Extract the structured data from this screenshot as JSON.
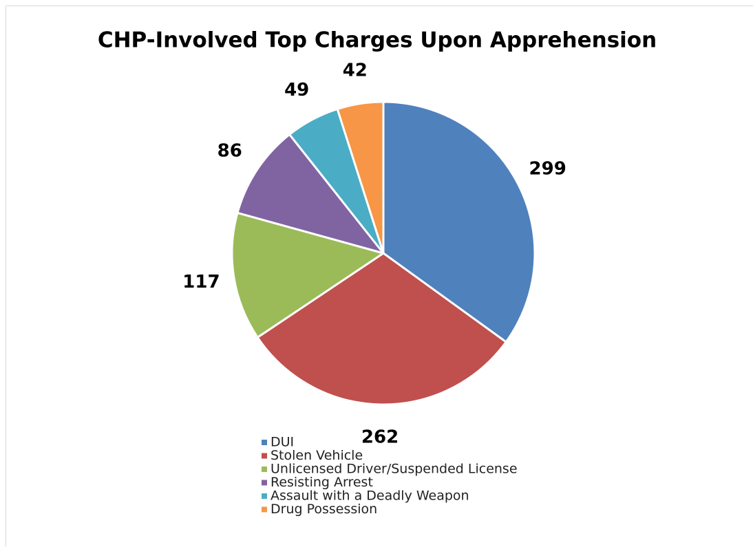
{
  "chart_data": {
    "type": "pie",
    "title": "CHP-Involved Top Charges Upon Apprehension",
    "categories": [
      "DUI",
      "Stolen Vehicle",
      "Unlicensed Driver/Suspended License",
      "Resisting Arrest",
      "Assault with a Deadly Weapon",
      "Drug Possession"
    ],
    "values": [
      299,
      262,
      117,
      86,
      49,
      42
    ],
    "colors": [
      "#4f81bd",
      "#c0504d",
      "#9bbb59",
      "#8064a2",
      "#4bacc6",
      "#f79646"
    ],
    "legend": "bottom"
  }
}
